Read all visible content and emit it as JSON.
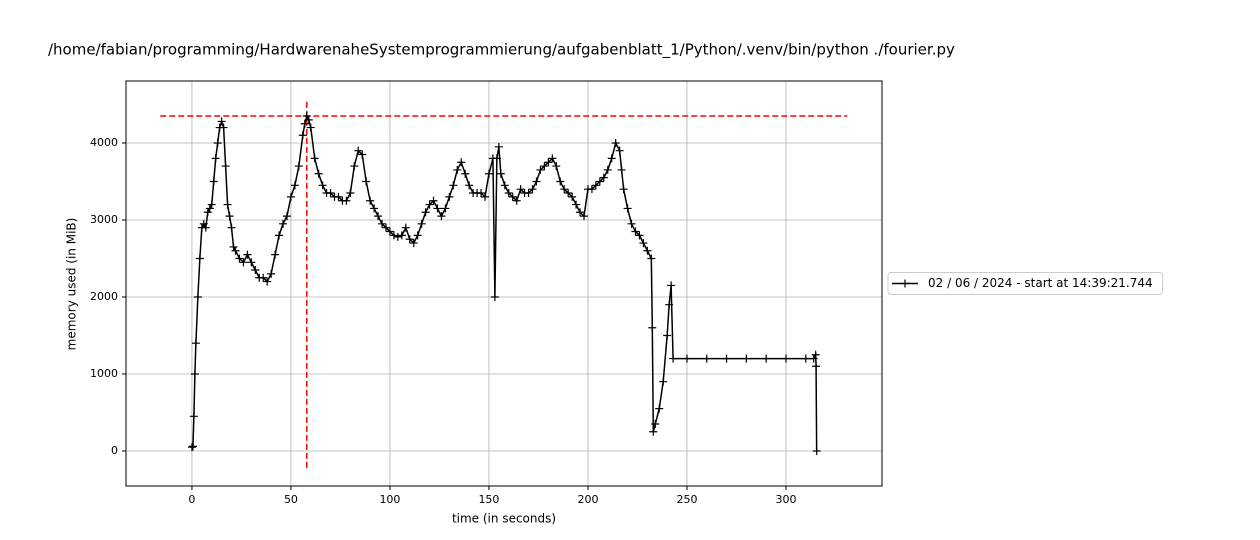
{
  "chart_data": {
    "type": "line",
    "title": "/home/fabian/programming/HardwarenaheSystemprogrammierung/aufgabenblatt_1/Python/.venv/bin/python ./fourier.py",
    "x_label": "time (in seconds)",
    "y_label": "memory used (in MiB)",
    "xlim": [
      -33.3,
      348.5
    ],
    "ylim": [
      -455,
      4805
    ],
    "xticks": [
      0,
      50,
      100,
      150,
      200,
      250,
      300
    ],
    "yticks": [
      0,
      1000,
      2000,
      3000,
      4000
    ],
    "grid": true,
    "legend": "right",
    "hlines": [
      {
        "y": 4350,
        "xmin": -16,
        "xmax": 331,
        "color": "#ff0000"
      }
    ],
    "vlines": [
      {
        "x": 58,
        "ymin": -220,
        "ymax": 4560,
        "color": "#ff0000"
      }
    ],
    "series": [
      {
        "name": "02 / 06 / 2024 - start at 14:39:21.744",
        "color": "#000000",
        "x": [
          0,
          0.5,
          1,
          1.5,
          2,
          3,
          4,
          5,
          6,
          7,
          8,
          9,
          10,
          11,
          12,
          13,
          14,
          15,
          16,
          17,
          18,
          19,
          20,
          21,
          22,
          24,
          26,
          28,
          30,
          32,
          34,
          36,
          38,
          40,
          42,
          44,
          46,
          48,
          50,
          52,
          54,
          56,
          57,
          58,
          59,
          60,
          62,
          64,
          66,
          68,
          70,
          72,
          74,
          76,
          78,
          80,
          82,
          84,
          86,
          88,
          90,
          92,
          94,
          96,
          98,
          100,
          102,
          104,
          106,
          108,
          110,
          112,
          114,
          116,
          118,
          120,
          122,
          124,
          126,
          128,
          130,
          132,
          134,
          136,
          138,
          140,
          142,
          144,
          146,
          148,
          150,
          152,
          153,
          154,
          155,
          156,
          158,
          160,
          162,
          164,
          166,
          168,
          170,
          172,
          174,
          176,
          178,
          180,
          182,
          184,
          186,
          188,
          190,
          192,
          194,
          196,
          198,
          200,
          202,
          204,
          206,
          208,
          210,
          212,
          214,
          216,
          217,
          218,
          220,
          222,
          224,
          226,
          228,
          230,
          232,
          232.5,
          233,
          234,
          236,
          238,
          240,
          241,
          242,
          243,
          250,
          260,
          270,
          280,
          290,
          300,
          310,
          314,
          315,
          315.2,
          315.5
        ],
        "values": [
          50,
          60,
          450,
          1000,
          1400,
          2000,
          2500,
          2900,
          2950,
          2900,
          3100,
          3150,
          3200,
          3500,
          3800,
          4000,
          4200,
          4280,
          4200,
          3700,
          3200,
          3050,
          2900,
          2650,
          2600,
          2500,
          2450,
          2550,
          2450,
          2350,
          2250,
          2250,
          2200,
          2300,
          2550,
          2800,
          2950,
          3050,
          3300,
          3450,
          3700,
          4100,
          4250,
          4350,
          4300,
          4200,
          3800,
          3600,
          3450,
          3350,
          3350,
          3300,
          3300,
          3250,
          3250,
          3350,
          3700,
          3900,
          3850,
          3500,
          3250,
          3150,
          3050,
          2950,
          2900,
          2850,
          2800,
          2780,
          2800,
          2900,
          2750,
          2700,
          2800,
          2950,
          3100,
          3200,
          3250,
          3150,
          3050,
          3150,
          3300,
          3450,
          3650,
          3750,
          3600,
          3450,
          3350,
          3350,
          3350,
          3300,
          3600,
          3800,
          2000,
          3800,
          3950,
          3600,
          3450,
          3350,
          3300,
          3250,
          3400,
          3350,
          3350,
          3400,
          3500,
          3650,
          3700,
          3750,
          3800,
          3700,
          3500,
          3400,
          3350,
          3300,
          3200,
          3100,
          3050,
          3400,
          3400,
          3450,
          3500,
          3550,
          3650,
          3800,
          4000,
          3900,
          3650,
          3400,
          3150,
          2950,
          2850,
          2800,
          2700,
          2600,
          2500,
          1600,
          250,
          350,
          550,
          900,
          1500,
          1900,
          2150,
          1200,
          1200,
          1200,
          1200,
          1200,
          1200,
          1200,
          1200,
          1200,
          1250,
          1100,
          0
        ]
      }
    ]
  }
}
